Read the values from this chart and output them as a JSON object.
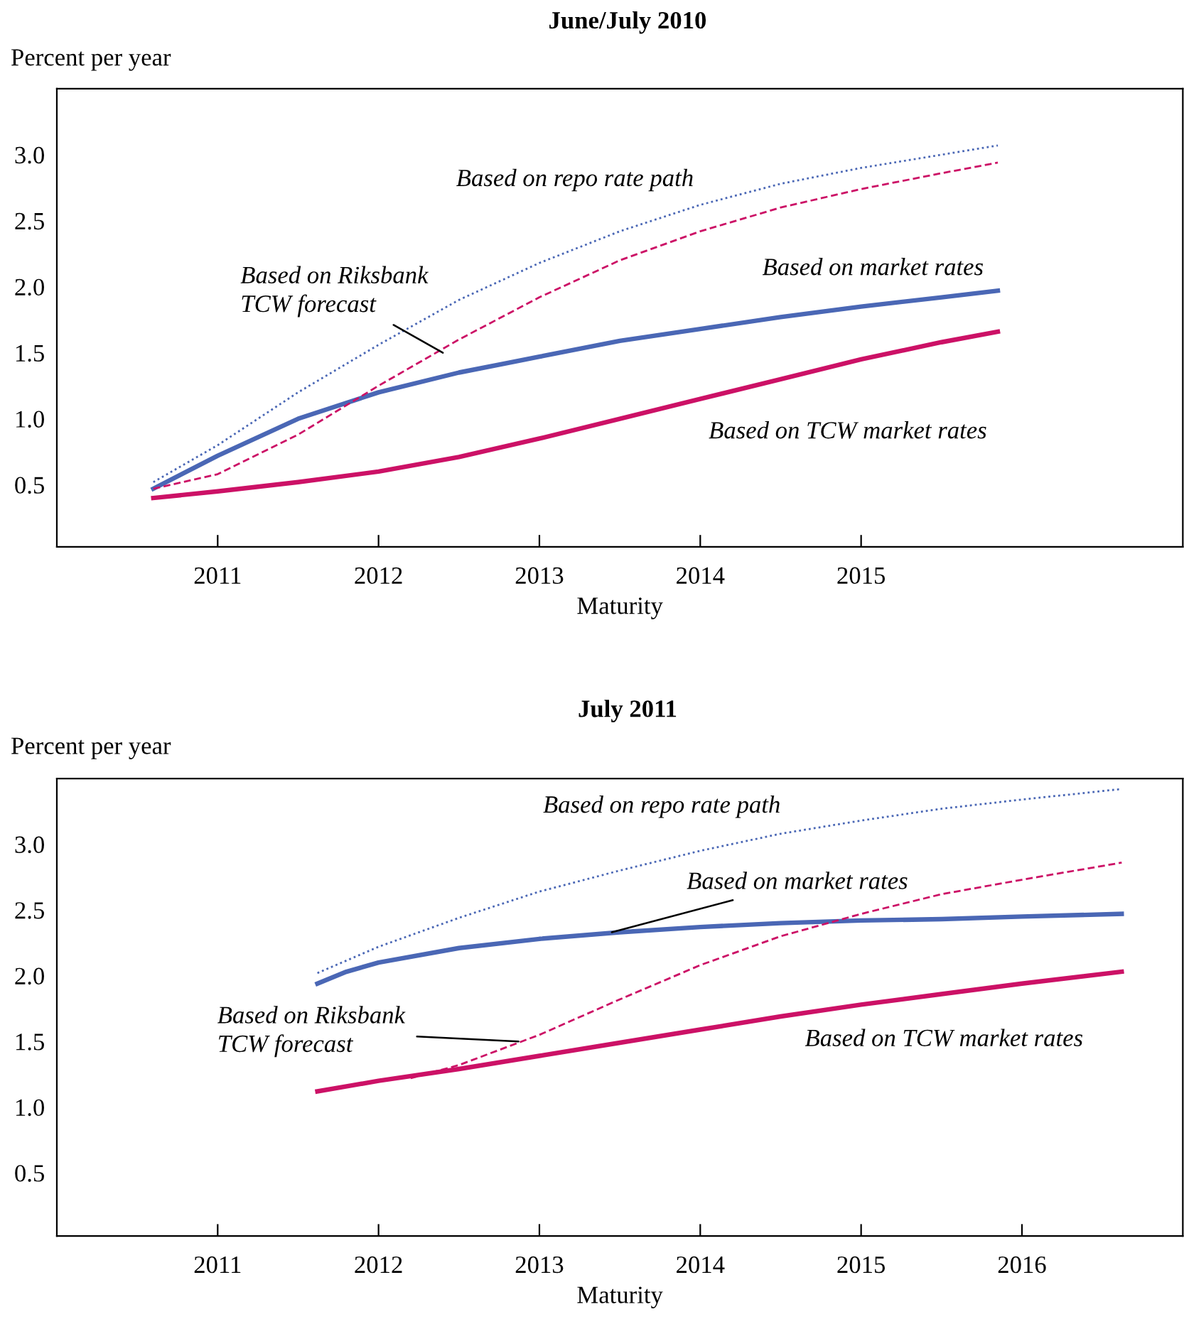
{
  "chart_data": [
    {
      "type": "line",
      "title": "June/July 2010",
      "ylabel": "Percent per year",
      "xlabel": "Maturity",
      "xlim": [
        2010.0,
        2017.0
      ],
      "xticks": [
        2011,
        2012,
        2013,
        2014,
        2015
      ],
      "ylim": [
        0.03,
        3.5
      ],
      "yticks": [
        0.5,
        {
          "value": 1,
          "label": "1.0"
        },
        1.5,
        {
          "value": 2,
          "label": "2.0"
        },
        2.5,
        {
          "value": 3,
          "label": "3.0"
        }
      ],
      "grid": false,
      "series": [
        {
          "color": "#4a67b5",
          "line_style": "dotted",
          "x": [
            2010.6,
            2011,
            2011.5,
            2012,
            2012.5,
            2013,
            2013.5,
            2014,
            2014.5,
            2015,
            2015.5,
            2015.85
          ],
          "values": [
            0.52,
            0.8,
            1.2,
            1.56,
            1.9,
            2.18,
            2.42,
            2.62,
            2.78,
            2.9,
            3.0,
            3.07
          ]
        },
        {
          "color": "#cc1166",
          "line_style": "dashed",
          "x": [
            2010.6,
            2011,
            2011.5,
            2012,
            2012.5,
            2013,
            2013.5,
            2014,
            2014.5,
            2015,
            2015.5,
            2015.85
          ],
          "values": [
            0.47,
            0.58,
            0.88,
            1.25,
            1.6,
            1.92,
            2.2,
            2.42,
            2.6,
            2.74,
            2.86,
            2.94
          ]
        },
        {
          "color": "#4a67b5",
          "line_style": "solid",
          "x": [
            2010.6,
            2011,
            2011.5,
            2012,
            2012.5,
            2013,
            2013.5,
            2014,
            2014.5,
            2015,
            2015.5,
            2015.85
          ],
          "values": [
            0.47,
            0.72,
            1.0,
            1.2,
            1.35,
            1.47,
            1.59,
            1.68,
            1.77,
            1.85,
            1.92,
            1.97
          ]
        },
        {
          "color": "#cc1166",
          "line_style": "solid",
          "x": [
            2010.6,
            2011,
            2011.5,
            2012,
            2012.5,
            2013,
            2013.5,
            2014,
            2014.5,
            2015,
            2015.5,
            2015.85
          ],
          "values": [
            0.4,
            0.45,
            0.52,
            0.6,
            0.71,
            0.85,
            1.0,
            1.15,
            1.3,
            1.45,
            1.58,
            1.66
          ]
        }
      ],
      "annotations": [
        {
          "text": "Based on repo rate path",
          "x": 2013,
          "y": 2.18
        },
        {
          "text": "Based on Riksbank\nTCW forecast",
          "x": 2012.4,
          "y": 1.5
        },
        {
          "text": "Based on market rates",
          "x": 2015,
          "y": 1.85
        },
        {
          "text": "Based on TCW market rates",
          "x": 2014.5,
          "y": 1.3
        }
      ]
    },
    {
      "type": "line",
      "title": "July 2011",
      "ylabel": "Percent per year",
      "xlabel": "Maturity",
      "xlim": [
        2010.0,
        2017.0
      ],
      "xticks": [
        2011,
        2012,
        2013,
        2014,
        2015,
        2016
      ],
      "ylim": [
        0.02,
        3.5
      ],
      "yticks": [
        0.5,
        {
          "value": 1,
          "label": "1.0"
        },
        1.5,
        {
          "value": 2,
          "label": "2.0"
        },
        2.5,
        {
          "value": 3,
          "label": "3.0"
        }
      ],
      "grid": false,
      "series": [
        {
          "color": "#4a67b5",
          "line_style": "dotted",
          "x": [
            2011.62,
            2012,
            2012.5,
            2013,
            2013.5,
            2014,
            2014.5,
            2015,
            2015.5,
            2016,
            2016.62
          ],
          "values": [
            2.02,
            2.22,
            2.44,
            2.64,
            2.8,
            2.95,
            3.08,
            3.18,
            3.27,
            3.34,
            3.42
          ]
        },
        {
          "color": "#4a67b5",
          "line_style": "solid",
          "x": [
            2011.62,
            2011.8,
            2012,
            2012.5,
            2013,
            2013.5,
            2014,
            2014.5,
            2015,
            2015.5,
            2016,
            2016.62
          ],
          "values": [
            1.94,
            2.03,
            2.1,
            2.21,
            2.28,
            2.33,
            2.37,
            2.4,
            2.42,
            2.43,
            2.45,
            2.47
          ]
        },
        {
          "color": "#cc1166",
          "line_style": "dashed",
          "x": [
            2012.2,
            2012.5,
            2013,
            2013.5,
            2014,
            2014.5,
            2015,
            2015.5,
            2016,
            2016.62
          ],
          "values": [
            1.22,
            1.32,
            1.55,
            1.82,
            2.08,
            2.3,
            2.47,
            2.62,
            2.73,
            2.86
          ]
        },
        {
          "color": "#cc1166",
          "line_style": "solid",
          "x": [
            2011.62,
            2012,
            2012.5,
            2013,
            2013.5,
            2014,
            2014.5,
            2015,
            2015.5,
            2016,
            2016.62
          ],
          "values": [
            1.12,
            1.2,
            1.29,
            1.39,
            1.49,
            1.59,
            1.69,
            1.78,
            1.86,
            1.94,
            2.03
          ]
        }
      ],
      "annotations": [
        {
          "text": "Based on repo rate path",
          "x": 2013,
          "y": 2.64
        },
        {
          "text": "Based on market rates",
          "x": 2013.45,
          "y": 2.33
        },
        {
          "text": "Based on Riksbank\nTCW forecast",
          "x": 2012.87,
          "y": 1.5
        },
        {
          "text": "Based on TCW market rates",
          "x": 2015,
          "y": 1.78
        }
      ]
    }
  ]
}
